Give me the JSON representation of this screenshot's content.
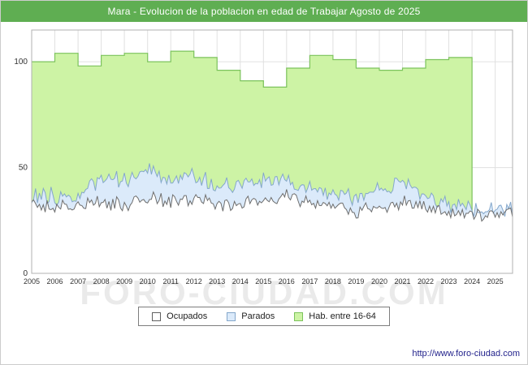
{
  "header": {
    "title": "Mara - Evolucion de la poblacion en edad de Trabajar Agosto de 2025"
  },
  "watermark": "FORO-CIUDAD.COM",
  "footer": {
    "url": "http://www.foro-ciudad.com"
  },
  "colors": {
    "header_bg": "#5fae52",
    "grid": "#e0e0e0",
    "plot_border": "#b0b0b0",
    "tick_text": "#333333",
    "url_text": "#23238c"
  },
  "legend": {
    "items": [
      {
        "label": "Ocupados",
        "fill": "#ffffff",
        "border": "#606060"
      },
      {
        "label": "Parados",
        "fill": "#dbeafa",
        "border": "#84a7cb"
      },
      {
        "label": "Hab. entre 16-64",
        "fill": "#cdf3a5",
        "border": "#7cc35c"
      }
    ]
  },
  "chart_data": {
    "type": "area",
    "title": "Mara - Evolucion de la poblacion en edad de Trabajar Agosto de 2025",
    "xlabel": "",
    "ylabel": "",
    "x_start": 2005,
    "x_end": 2025.75,
    "years": [
      2005,
      2006,
      2007,
      2008,
      2009,
      2010,
      2011,
      2012,
      2013,
      2014,
      2015,
      2016,
      2017,
      2018,
      2019,
      2020,
      2021,
      2022,
      2023,
      2024,
      2025
    ],
    "ylim": [
      0,
      115
    ],
    "y_ticks": [
      0,
      50,
      100
    ],
    "grid": true,
    "legend_position": "bottom",
    "series": [
      {
        "name": "Hab. entre 16-64",
        "step": true,
        "fill": "#cdf3a5",
        "stroke": "#7cc35c",
        "annual_values": [
          100,
          104,
          98,
          103,
          104,
          100,
          105,
          102,
          96,
          91,
          88,
          97,
          103,
          101,
          97,
          96,
          97,
          101,
          102,
          null,
          null
        ]
      },
      {
        "name": "Parados",
        "fill": "#dbeafa",
        "stroke": "#84a7cb",
        "noise": 6,
        "annual_values": [
          38,
          36,
          38,
          45,
          44,
          50,
          44,
          46,
          42,
          40,
          44,
          45,
          40,
          38,
          36,
          40,
          42,
          36,
          32,
          30,
          31
        ]
      },
      {
        "name": "Ocupados",
        "fill": "#ffffff",
        "stroke": "#6e6e6e",
        "noise": 5,
        "annual_values": [
          33,
          31,
          33,
          34,
          32,
          36,
          34,
          35,
          33,
          32,
          35,
          37,
          34,
          32,
          30,
          31,
          33,
          31,
          29,
          27,
          28
        ]
      }
    ]
  }
}
